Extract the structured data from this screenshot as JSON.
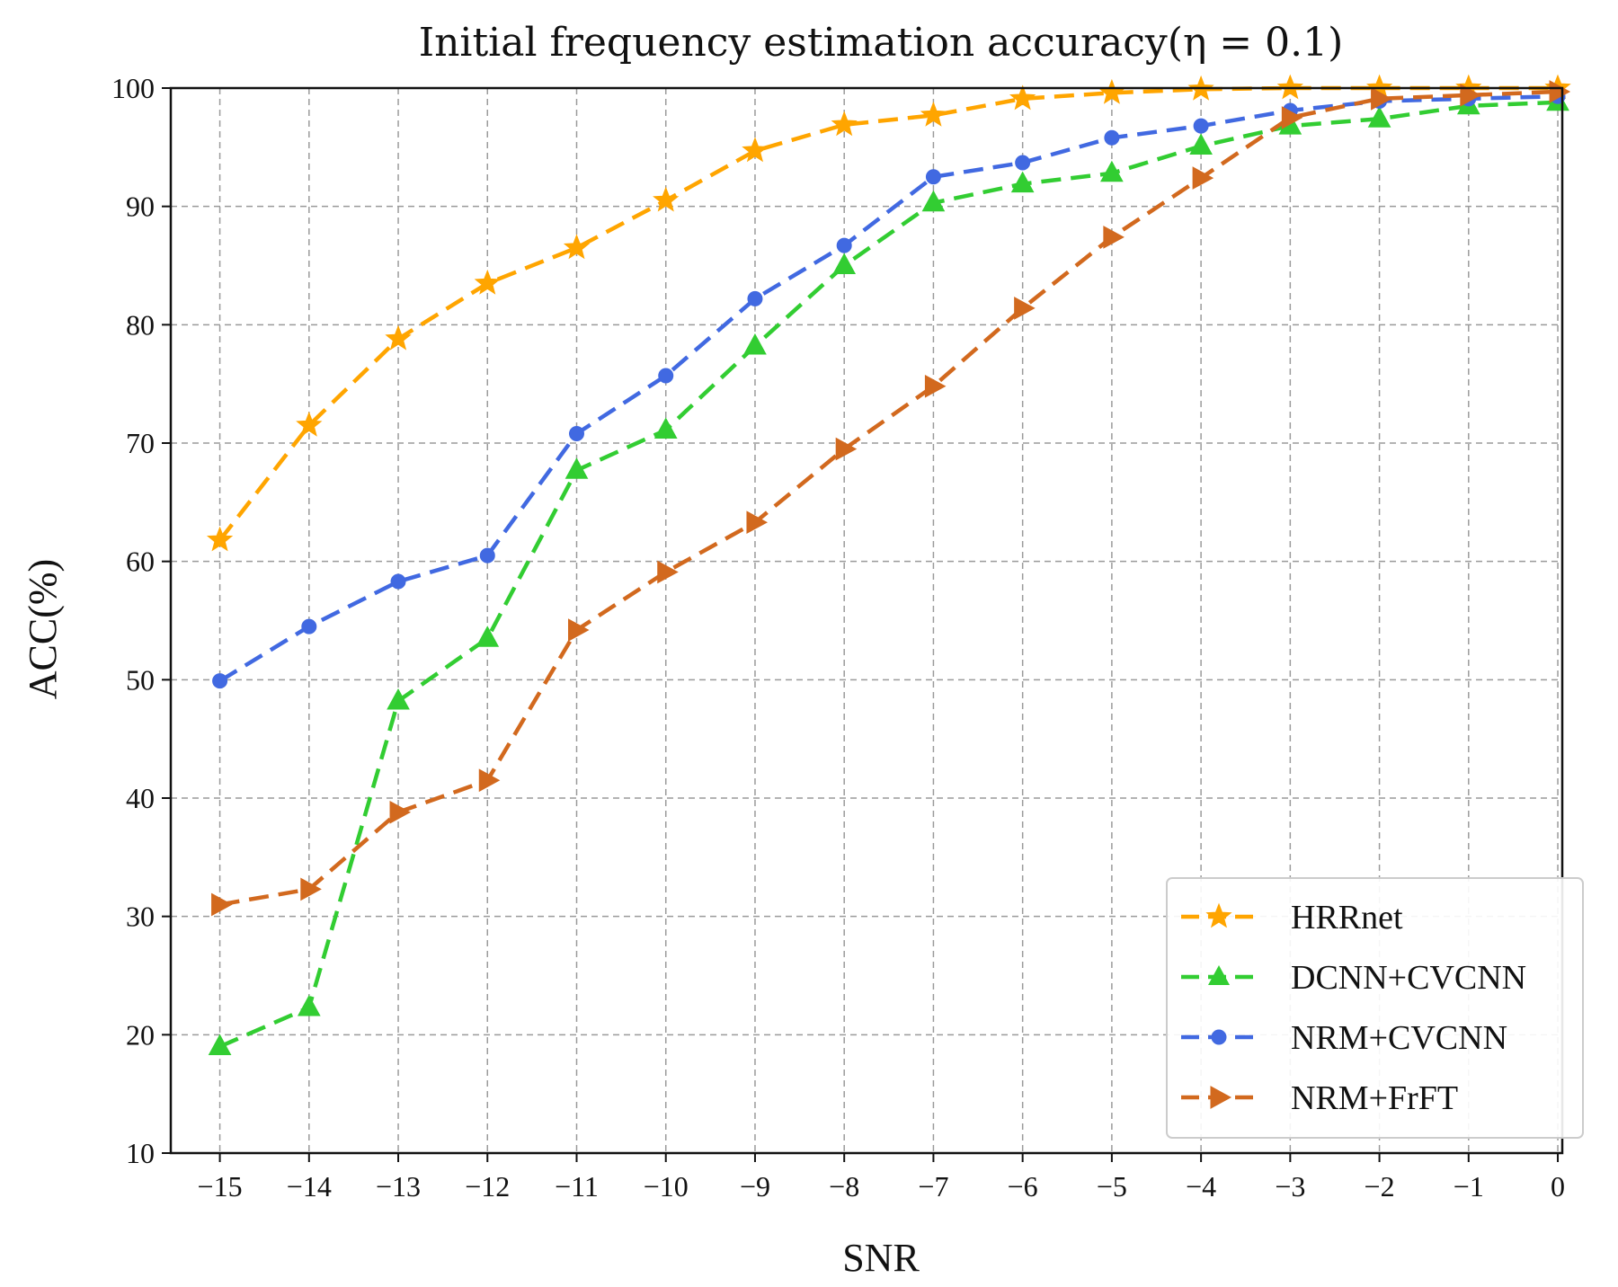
{
  "chart_data": {
    "type": "line",
    "title": "Initial frequency estimation accuracy(η = 0.1)",
    "xlabel": "SNR",
    "ylabel": "ACC(%)",
    "xlim": [
      -15.55,
      0.05
    ],
    "ylim": [
      10,
      100
    ],
    "grid": true,
    "legend_position": "lower-right",
    "x": [
      -15,
      -14,
      -13,
      -12,
      -11,
      -10,
      -9,
      -8,
      -7,
      -6,
      -5,
      -4,
      -3,
      -2,
      -1,
      0
    ],
    "x_tick_labels": [
      "−15",
      "−14",
      "−13",
      "−12",
      "−11",
      "−10",
      "−9",
      "−8",
      "−7",
      "−6",
      "−5",
      "−4",
      "−3",
      "−2",
      "−1",
      "0"
    ],
    "y_ticks": [
      10,
      20,
      30,
      40,
      50,
      60,
      70,
      80,
      90,
      100
    ],
    "y_tick_labels": [
      "10",
      "20",
      "30",
      "40",
      "50",
      "60",
      "70",
      "80",
      "90",
      "100"
    ],
    "series": [
      {
        "name": "HRRnet",
        "color": "#ffa500",
        "marker": "star",
        "values": [
          61.8,
          71.5,
          78.8,
          83.5,
          86.5,
          90.5,
          94.7,
          96.9,
          97.7,
          99.1,
          99.6,
          99.9,
          100,
          100,
          100,
          100
        ]
      },
      {
        "name": "DCNN+CVCNN",
        "color": "#32cd32",
        "marker": "triangle-up",
        "values": [
          19.0,
          22.3,
          48.2,
          53.5,
          67.7,
          71.1,
          78.2,
          85.0,
          90.3,
          91.9,
          92.8,
          95.1,
          96.8,
          97.4,
          98.5,
          98.8
        ]
      },
      {
        "name": "NRM+CVCNN",
        "color": "#4169e1",
        "marker": "circle",
        "values": [
          49.9,
          54.5,
          58.3,
          60.5,
          70.8,
          75.7,
          82.2,
          86.7,
          92.5,
          93.7,
          95.8,
          96.8,
          98.1,
          98.9,
          99.1,
          99.3
        ]
      },
      {
        "name": "NRM+FrFT",
        "color": "#d2691e",
        "marker": "triangle-right",
        "values": [
          31.0,
          32.3,
          38.8,
          41.5,
          54.2,
          59.1,
          63.3,
          69.5,
          74.8,
          81.4,
          87.4,
          92.4,
          97.5,
          99.1,
          99.4,
          99.7
        ]
      }
    ]
  }
}
